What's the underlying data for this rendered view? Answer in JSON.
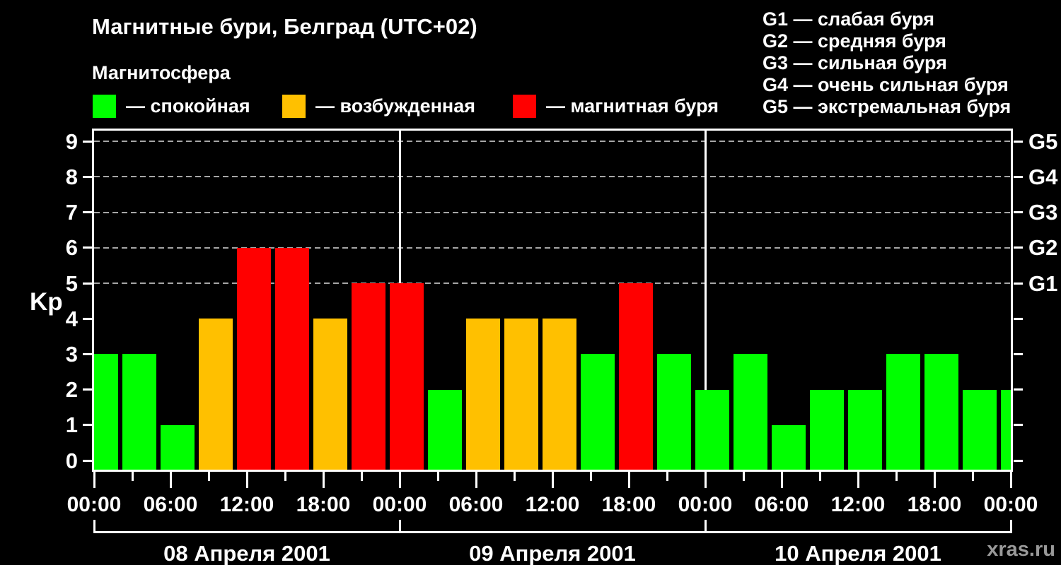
{
  "header": {
    "title": "Магнитные бури, Белград (UTC+02)",
    "subtitle": "Магнитосфера",
    "legend": [
      {
        "key": "quiet",
        "label": "— спокойная",
        "color": "#00FF00"
      },
      {
        "key": "active",
        "label": "— возбужденная",
        "color": "#FFC000"
      },
      {
        "key": "storm",
        "label": "— магнитная буря",
        "color": "#FF0000"
      }
    ],
    "g_scale": [
      "G1 — слабая буря",
      "G2 — средняя буря",
      "G3 — сильная буря",
      "G4 — очень сильная буря",
      "G5 — экстремальная буря"
    ]
  },
  "watermark": "xras.ru",
  "chart_data": {
    "type": "bar",
    "ylabel": "Kp",
    "yticks": [
      0,
      1,
      2,
      3,
      4,
      5,
      6,
      7,
      8,
      9
    ],
    "ylim": [
      -0.26,
      9.66
    ],
    "grid_kp": [
      5,
      6,
      7,
      8,
      9
    ],
    "right_axis": [
      {
        "kp": 5,
        "label": "G1"
      },
      {
        "kp": 6,
        "label": "G2"
      },
      {
        "kp": 7,
        "label": "G3"
      },
      {
        "kp": 8,
        "label": "G4"
      },
      {
        "kp": 9,
        "label": "G5"
      }
    ],
    "hours_span": 72,
    "x_tick_step_h": 3,
    "x_label_step_h": 6,
    "time_labels": [
      "00:00",
      "06:00",
      "12:00",
      "18:00",
      "00:00",
      "06:00",
      "12:00",
      "18:00",
      "00:00",
      "06:00",
      "12:00",
      "18:00",
      "00:00"
    ],
    "day_boundaries_h": [
      24,
      48
    ],
    "days": [
      {
        "date": "08 Апреля 2001",
        "kp": [
          3,
          3,
          1,
          4,
          6,
          6,
          4,
          5
        ]
      },
      {
        "date": "09 Апреля 2001",
        "kp": [
          5,
          2,
          4,
          4,
          4,
          3,
          5,
          3
        ]
      },
      {
        "date": "10 Апреля 2001",
        "kp": [
          2,
          3,
          1,
          2,
          2,
          3,
          3,
          2
        ]
      }
    ],
    "next_day_first_kp": 2,
    "interval_hours": 3,
    "color_rules": {
      "quiet_max_kp": 3,
      "active_max_kp": 4
    },
    "colors": {
      "quiet": "#00FF00",
      "active": "#FFC000",
      "storm": "#FF0000"
    },
    "grid_color": "#a6a6a6",
    "axis_color": "#ffffff",
    "background": "#000000"
  }
}
